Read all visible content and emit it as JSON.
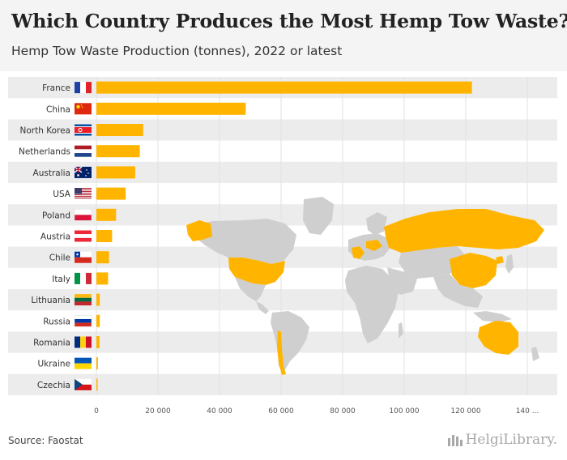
{
  "header": {
    "title": "Which Country Produces the Most Hemp Tow Waste?",
    "subtitle": "Hemp Tow Waste Production (tonnes), 2022 or latest"
  },
  "chart_data": {
    "type": "bar",
    "orientation": "horizontal",
    "categories": [
      "France",
      "China",
      "North Korea",
      "Netherlands",
      "Australia",
      "USA",
      "Poland",
      "Austria",
      "Chile",
      "Italy",
      "Lithuania",
      "Russia",
      "Romania",
      "Ukraine",
      "Czechia"
    ],
    "values": [
      122000,
      48500,
      15200,
      14100,
      12600,
      9500,
      6400,
      5100,
      4100,
      3800,
      1100,
      1100,
      1000,
      500,
      250
    ],
    "xlim": [
      0,
      140000
    ],
    "xticks": [
      "0",
      "20 000",
      "40 000",
      "60 000",
      "80 000",
      "100 000",
      "120 000",
      "140 ..."
    ],
    "grid": true,
    "bar_color": "#ffb400",
    "flags": [
      "france-flag-icon",
      "china-flag-icon",
      "north-korea-flag-icon",
      "netherlands-flag-icon",
      "australia-flag-icon",
      "usa-flag-icon",
      "poland-flag-icon",
      "austria-flag-icon",
      "chile-flag-icon",
      "italy-flag-icon",
      "lithuania-flag-icon",
      "russia-flag-icon",
      "romania-flag-icon",
      "ukraine-flag-icon",
      "czechia-flag-icon"
    ],
    "background": "world-map-highlighting-producer-countries"
  },
  "footer": {
    "source": "Source: Faostat",
    "brand": "HelgiLibrary."
  },
  "colors": {
    "accent": "#ffb400",
    "map_land": "#cfcfcf",
    "stripe": "#ececec"
  }
}
